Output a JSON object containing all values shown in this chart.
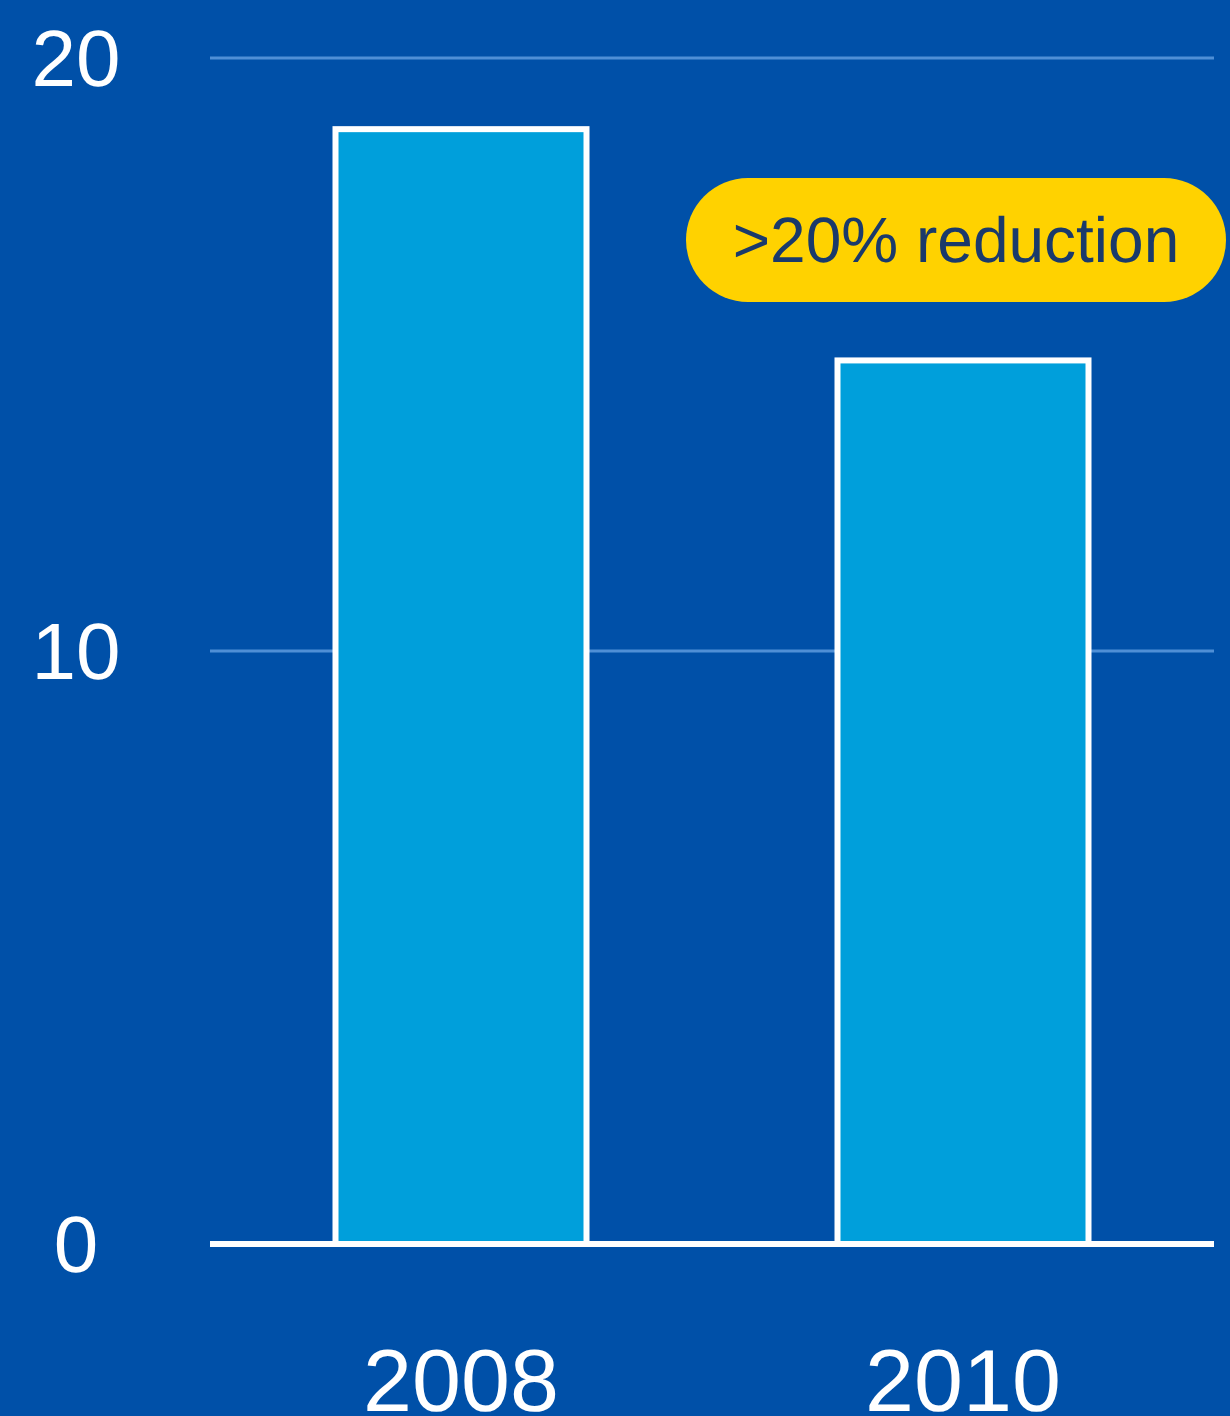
{
  "chart_data": {
    "type": "bar",
    "categories": [
      "2008",
      "2010"
    ],
    "values": [
      18.8,
      14.9
    ],
    "color": "#009fdb",
    "ylim": [
      0,
      20
    ],
    "yticks": [
      0,
      10,
      20
    ],
    "ref_lines": [
      {
        "axis": "y",
        "value": 10,
        "color": "#4f8fd6"
      },
      {
        "axis": "y",
        "value": 20,
        "color": "#4f8fd6"
      }
    ],
    "annotations": [
      ">20% reduction"
    ]
  }
}
